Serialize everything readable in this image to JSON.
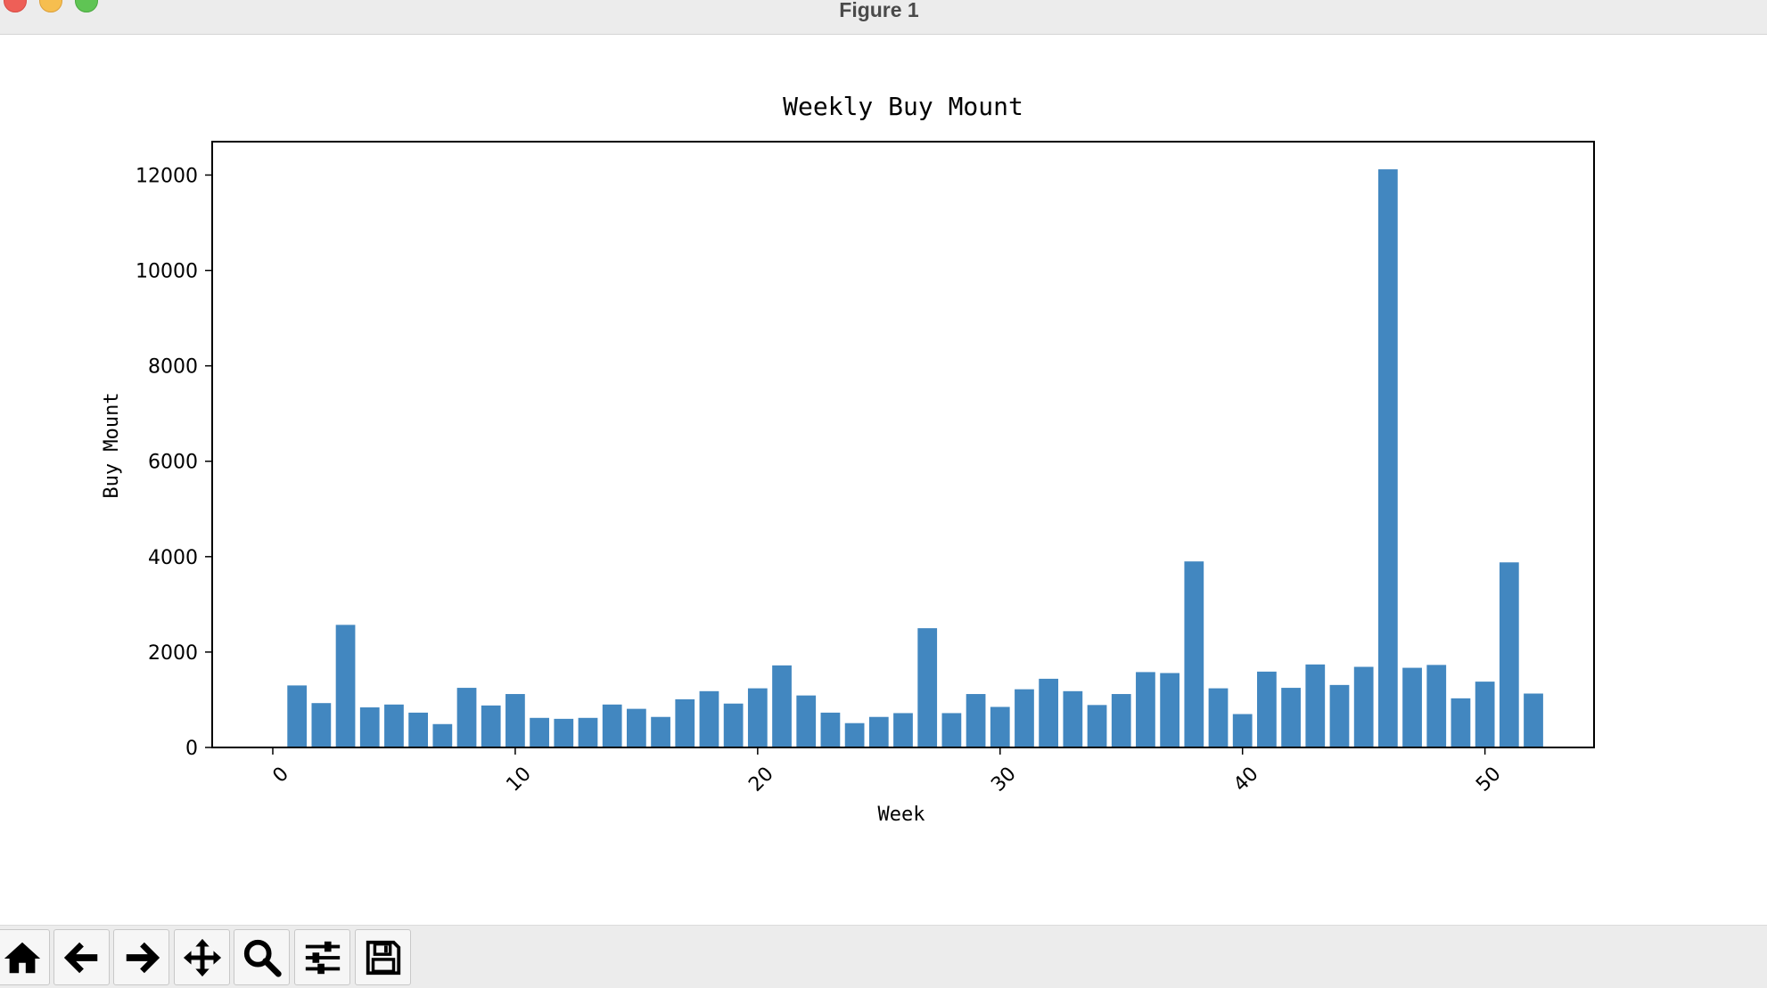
{
  "window": {
    "title": "Figure 1"
  },
  "toolbar": {
    "buttons": [
      {
        "name": "home-button",
        "icon": "home-icon"
      },
      {
        "name": "back-button",
        "icon": "arrow-left-icon"
      },
      {
        "name": "forward-button",
        "icon": "arrow-right-icon"
      },
      {
        "name": "pan-button",
        "icon": "move-icon"
      },
      {
        "name": "zoom-button",
        "icon": "search-icon"
      },
      {
        "name": "configure-subplots-button",
        "icon": "sliders-icon"
      },
      {
        "name": "save-button",
        "icon": "save-icon"
      }
    ]
  },
  "chart_data": {
    "type": "bar",
    "title": "Weekly Buy Mount",
    "xlabel": "Week",
    "ylabel": "Buy Mount",
    "x": [
      1,
      2,
      3,
      4,
      5,
      6,
      7,
      8,
      9,
      10,
      11,
      12,
      13,
      14,
      15,
      16,
      17,
      18,
      19,
      20,
      21,
      22,
      23,
      24,
      25,
      26,
      27,
      28,
      29,
      30,
      31,
      32,
      33,
      34,
      35,
      36,
      37,
      38,
      39,
      40,
      41,
      42,
      43,
      44,
      45,
      46,
      47,
      48,
      49,
      50,
      51,
      52
    ],
    "values": [
      1300,
      930,
      2570,
      840,
      900,
      730,
      490,
      1250,
      880,
      1120,
      620,
      600,
      620,
      900,
      810,
      640,
      1010,
      1180,
      920,
      1240,
      1720,
      1090,
      730,
      510,
      640,
      720,
      2500,
      720,
      1120,
      850,
      1220,
      1440,
      1180,
      890,
      1120,
      1580,
      1560,
      3900,
      1240,
      700,
      1590,
      1250,
      1740,
      1310,
      1690,
      12120,
      1670,
      1730,
      1030,
      1380,
      3880,
      1130
    ],
    "xticks": [
      0,
      10,
      20,
      30,
      40,
      50
    ],
    "yticks": [
      0,
      2000,
      4000,
      6000,
      8000,
      10000,
      12000
    ],
    "xlim": [
      -2.5,
      54.5
    ],
    "ylim": [
      0,
      12700
    ],
    "tick_rotation": 45,
    "bar_color": "#4287c0",
    "grid": false
  }
}
